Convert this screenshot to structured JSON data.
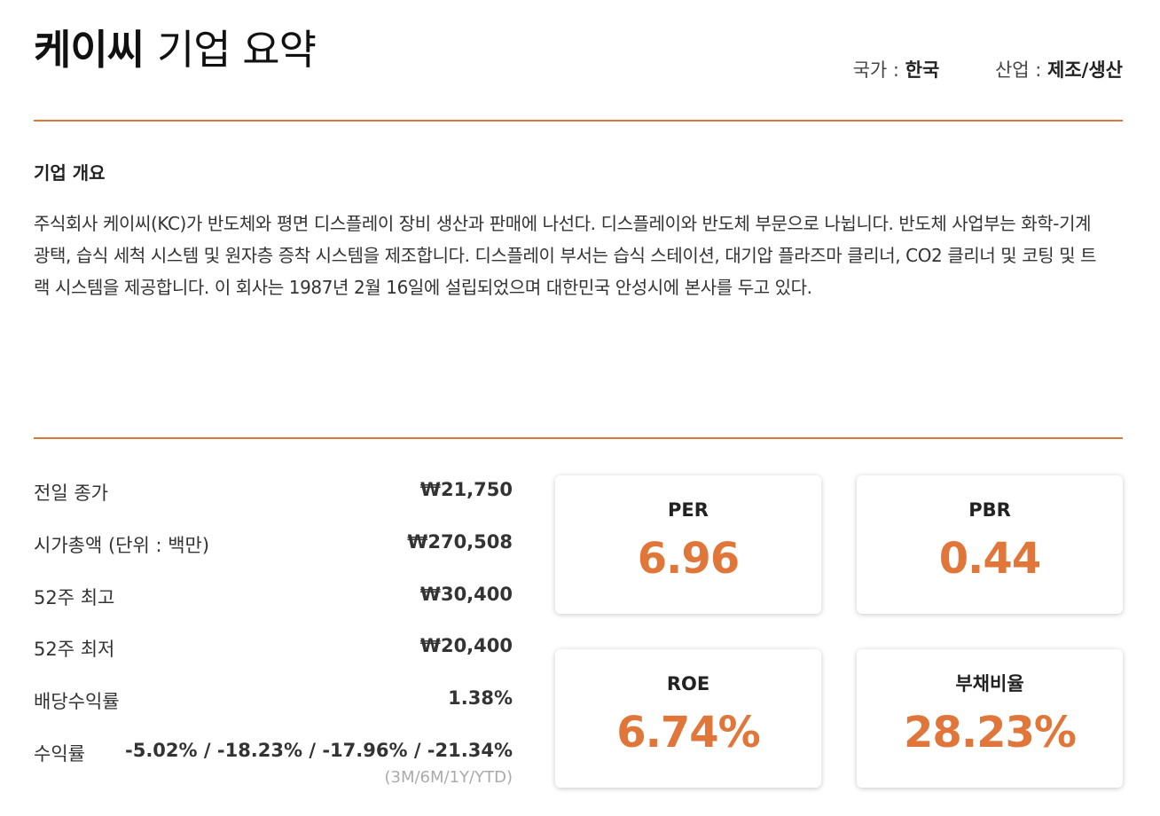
{
  "header": {
    "company": "케이씨",
    "title_suffix": "기업 요약",
    "country_label": "국가 : ",
    "country_value": "한국",
    "industry_label": "산업 : ",
    "industry_value": "제조/생산"
  },
  "overview": {
    "heading": "기업 개요",
    "text": "주식회사 케이씨(KC)가 반도체와 평면 디스플레이 장비 생산과 판매에 나선다. 디스플레이와 반도체 부문으로 나뉩니다. 반도체 사업부는 화학-기계 광택, 습식 세척 시스템 및 원자층 증착 시스템을 제조합니다. 디스플레이 부서는 습식 스테이션, 대기압 플라즈마 클리너, CO2 클리너 및 코팅 및 트랙 시스템을 제공합니다. 이 회사는 1987년 2월 16일에 설립되었으며 대한민국 안성시에 본사를 두고 있다."
  },
  "stats": [
    {
      "label": "전일 종가",
      "value": "₩21,750"
    },
    {
      "label": "시가총액 (단위 : 백만)",
      "value": "₩270,508"
    },
    {
      "label": "52주 최고",
      "value": "₩30,400"
    },
    {
      "label": "52주 최저",
      "value": "₩20,400"
    },
    {
      "label": "배당수익률",
      "value": "1.38%"
    },
    {
      "label": "수익률",
      "value": "-5.02% / -18.23% / -17.96% / -21.34%",
      "sub": "(3M/6M/1Y/YTD)"
    }
  ],
  "cards": [
    {
      "label": "PER",
      "value": "6.96"
    },
    {
      "label": "PBR",
      "value": "0.44"
    },
    {
      "label": "ROE",
      "value": "6.74%"
    },
    {
      "label": "부채비율",
      "value": "28.23%"
    }
  ],
  "colors": {
    "accent": "#e0763a",
    "rule": "#d9773e",
    "text": "#333333",
    "muted": "#aaaaaa"
  }
}
